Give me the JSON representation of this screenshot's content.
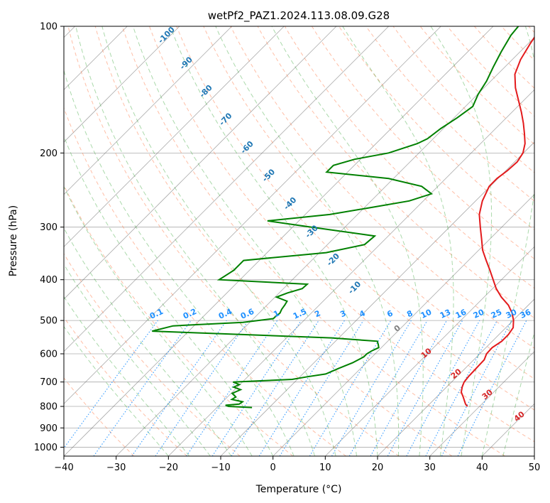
{
  "chart_data": {
    "type": "line",
    "title": "wetPf2_PAZ1.2024.113.08.09.G28",
    "xlabel": "Temperature (°C)",
    "ylabel": "Pressure (hPa)",
    "xlim": [
      -40,
      50
    ],
    "ylim": [
      1050,
      100
    ],
    "y_scale": "log",
    "x_ticks": [
      -40,
      -30,
      -20,
      -10,
      0,
      10,
      20,
      30,
      40,
      50
    ],
    "y_ticks": [
      100,
      200,
      300,
      400,
      500,
      600,
      700,
      800,
      900,
      1000
    ],
    "grid": true,
    "skew_t": true,
    "series": [
      {
        "color": "#e31a1c",
        "pressure": [
          800,
          790,
          780,
          760,
          740,
          720,
          700,
          680,
          650,
          620,
          600,
          580,
          560,
          540,
          520,
          500,
          480,
          460,
          440,
          420,
          400,
          380,
          360,
          340,
          320,
          300,
          280,
          260,
          240,
          230,
          220,
          210,
          200,
          190,
          180,
          170,
          160,
          150,
          140,
          130,
          120,
          110,
          100
        ],
        "temperature": [
          -14.3,
          -15.1,
          -15.7,
          -16.9,
          -18.2,
          -19.0,
          -19.6,
          -19.8,
          -19.9,
          -20.0,
          -20.7,
          -20.8,
          -20.2,
          -20.2,
          -20.6,
          -21.9,
          -23.6,
          -25.8,
          -28.7,
          -31.3,
          -33.6,
          -36.0,
          -38.6,
          -41.3,
          -43.6,
          -46.1,
          -48.7,
          -50.7,
          -52.2,
          -52.2,
          -51.7,
          -51.5,
          -52.1,
          -53.5,
          -55.5,
          -57.7,
          -60.2,
          -63.0,
          -66.0,
          -68.7,
          -70.4,
          -71.6,
          -72.7
        ]
      },
      {
        "color": "#008000",
        "pressure": [
          805,
          800,
          795,
          790,
          780,
          770,
          760,
          745,
          730,
          720,
          710,
          700,
          690,
          680,
          670,
          650,
          630,
          610,
          600,
          590,
          580,
          570,
          560,
          550,
          530,
          515,
          505,
          495,
          490,
          480,
          470,
          460,
          450,
          440,
          430,
          420,
          410,
          400,
          380,
          360,
          345,
          330,
          315,
          300,
          290,
          280,
          270,
          260,
          250,
          240,
          230,
          222,
          214,
          207,
          200,
          190,
          185,
          175,
          165,
          155,
          145,
          135,
          125,
          115,
          105,
          100
        ],
        "dewpoint": [
          -55.3,
          -60.0,
          -60.8,
          -58.4,
          -58.2,
          -60.7,
          -60.4,
          -61.8,
          -60.9,
          -62.7,
          -62.1,
          -63.8,
          -53.0,
          -50.5,
          -47.6,
          -46.2,
          -44.6,
          -43.6,
          -43.6,
          -43.2,
          -42.5,
          -43.2,
          -44.0,
          -53.4,
          -89.0,
          -86.0,
          -73.3,
          -68.2,
          -68.2,
          -68.0,
          -68.4,
          -68.6,
          -68.9,
          -71.7,
          -70.4,
          -68.4,
          -68.3,
          -86.0,
          -85.0,
          -85.0,
          -70.7,
          -64.9,
          -64.6,
          -78.4,
          -88.0,
          -77.3,
          -71.1,
          -64.7,
          -61.8,
          -65.1,
          -72.9,
          -86.0,
          -86.0,
          -83.1,
          -77.8,
          -74.1,
          -73.1,
          -72.5,
          -71.4,
          -70.6,
          -71.9,
          -72.8,
          -74.2,
          -75.6,
          -76.9,
          -77.2
        ]
      }
    ],
    "dry_adiabat_labels": [
      "-100",
      "-90",
      "-80",
      "-70",
      "-60",
      "-50",
      "-40",
      "-30",
      "-20",
      "-10"
    ],
    "mixing_ratio_labels": [
      "0.1",
      "0.2",
      "0.4",
      "0.6",
      "1",
      "1.5",
      "2",
      "3",
      "4",
      "6",
      "8",
      "10",
      "13",
      "16",
      "20",
      "25",
      "30",
      "36"
    ],
    "moist_adiabat_labels": [
      "0",
      "10",
      "20",
      "30",
      "40"
    ],
    "colors": {
      "temperature": "#e31a1c",
      "dewpoint": "#008000",
      "dry_adiabat": "#ff7f50",
      "moist_adiabat": "#2ca02c",
      "mixing_ratio": "#1e90ff",
      "dry_adiabat_label": "#1f77b4",
      "mixing_ratio_label": "#1e90ff",
      "moist_adiabat_label_0": "#808080",
      "moist_adiabat_label": "#d62728",
      "isotherm": "#666666"
    }
  }
}
